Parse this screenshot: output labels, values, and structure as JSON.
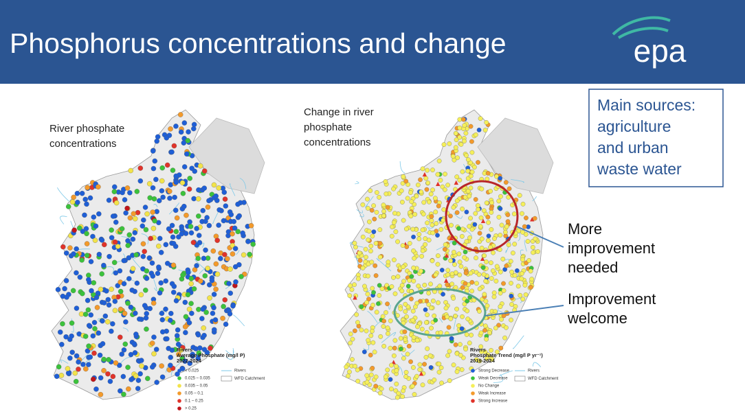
{
  "header": {
    "title": "Phosphorus concentrations and change",
    "logo": "epa"
  },
  "left_map": {
    "caption": [
      "River phosphate",
      "concentrations"
    ],
    "legend": {
      "heading": [
        "Rivers",
        "Average Phosphate (mg/l P)",
        "2022-2024"
      ],
      "items": [
        {
          "label": "< 0.025",
          "color": "#1f5fd6"
        },
        {
          "label": "0.025 – 0.035",
          "color": "#3cc23c"
        },
        {
          "label": "0.035 – 0.05",
          "color": "#f2e34a"
        },
        {
          "label": "0.05 – 0.1",
          "color": "#f39a2b"
        },
        {
          "label": "0.1 – 0.25",
          "color": "#e0332a"
        },
        {
          "label": "> 0.25",
          "color": "#c0141a"
        }
      ],
      "extra": [
        "Rivers",
        "WFD Catchment"
      ]
    }
  },
  "right_map": {
    "caption": [
      "Change in river",
      "phosphate",
      "concentrations"
    ],
    "legend": {
      "heading": [
        "Rivers",
        "Phosphate Trend (mg/l P yr⁻¹)",
        "2019-2024"
      ],
      "items": [
        {
          "label": "Strong Decrease",
          "color": "#1f5fd6"
        },
        {
          "label": "Weak Decrease",
          "color": "#3cc23c"
        },
        {
          "label": "No Change",
          "color": "#f5ef5a"
        },
        {
          "label": "Weak Increase",
          "color": "#f39a2b"
        },
        {
          "label": "Strong Increase",
          "color": "#e0332a"
        }
      ],
      "extra": [
        "Rivers",
        "WFD Catchment"
      ]
    }
  },
  "sources_box": [
    "Main sources:",
    "agriculture",
    "and urban",
    "waste water"
  ],
  "callouts": [
    {
      "lines": [
        "More",
        "improvement",
        "needed"
      ]
    },
    {
      "lines": [
        "Improvement",
        "welcome"
      ]
    }
  ]
}
